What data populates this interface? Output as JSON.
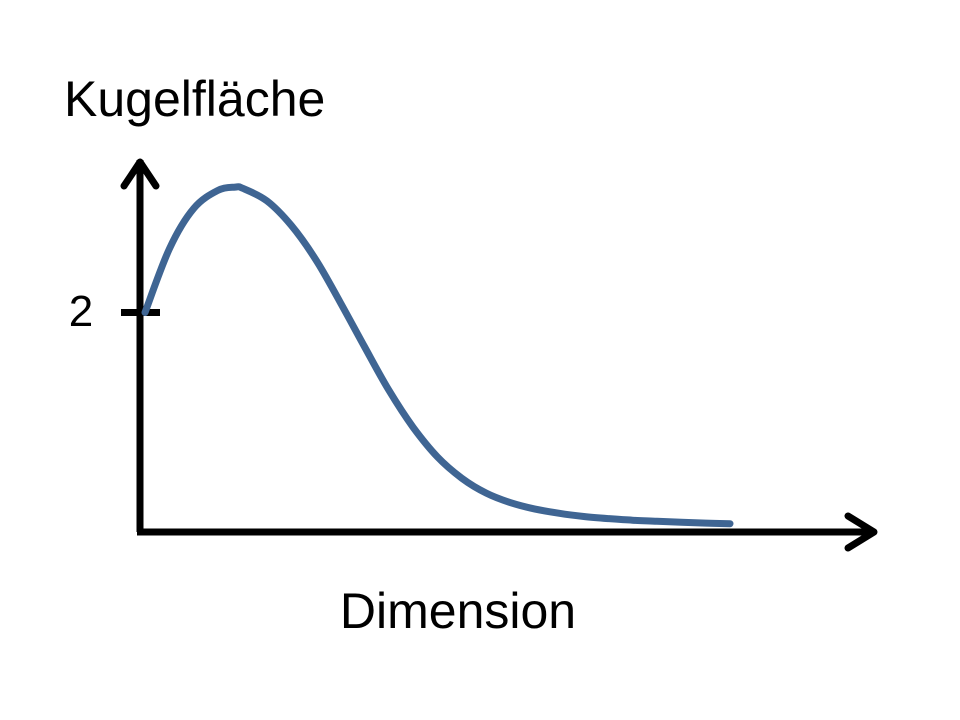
{
  "chart_data": {
    "type": "line",
    "ylabel": "Kugelfläche",
    "xlabel": "Dimension",
    "yticks": [
      {
        "value": 2,
        "label": "2"
      }
    ],
    "ylim": [
      0,
      4
    ],
    "xlim": [
      0,
      24
    ],
    "grid": false,
    "legend": "none",
    "line_color": "#3f6593",
    "axis_color": "#000000",
    "series": [
      {
        "x": [
          0,
          1,
          2,
          3,
          3.7,
          4,
          5,
          6,
          7,
          8,
          9,
          10,
          11,
          12,
          13,
          14,
          15,
          16,
          17,
          18,
          19,
          20,
          21,
          22,
          23,
          24
        ],
        "values": [
          2.0,
          2.6,
          2.98,
          3.15,
          3.18,
          3.17,
          3.05,
          2.82,
          2.5,
          2.1,
          1.68,
          1.27,
          0.92,
          0.64,
          0.44,
          0.3,
          0.21,
          0.15,
          0.11,
          0.08,
          0.06,
          0.045,
          0.035,
          0.025,
          0.018,
          0.012
        ]
      }
    ]
  }
}
